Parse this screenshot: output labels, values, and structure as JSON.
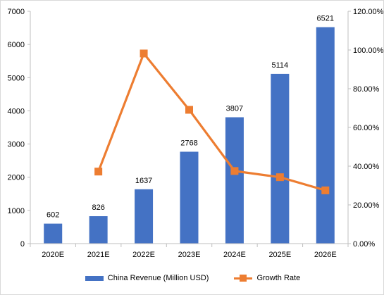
{
  "chart_data": {
    "type": "bar",
    "categories": [
      "2020E",
      "2021E",
      "2022E",
      "2023E",
      "2024E",
      "2025E",
      "2026E"
    ],
    "series": [
      {
        "name": "China Revenue (Million USD)",
        "type": "bar",
        "axis": "left",
        "color": "#4472C4",
        "values": [
          602,
          826,
          1637,
          2768,
          3807,
          5114,
          6521
        ],
        "labels": [
          "602",
          "826",
          "1637",
          "2768",
          "3807",
          "5114",
          "6521"
        ]
      },
      {
        "name": "Growth Rate",
        "type": "line",
        "axis": "right",
        "color": "#ED7D31",
        "values": [
          null,
          37.2,
          98.2,
          69.1,
          37.5,
          34.3,
          27.5
        ]
      }
    ],
    "y_left": {
      "ylim": [
        0,
        7000
      ],
      "ticks": [
        "0",
        "1000",
        "2000",
        "3000",
        "4000",
        "5000",
        "6000",
        "7000"
      ]
    },
    "y_right": {
      "ylim": [
        0,
        120
      ],
      "ticks": [
        "0.00%",
        "20.00%",
        "40.00%",
        "60.00%",
        "80.00%",
        "100.00%",
        "120.00%"
      ]
    },
    "grid": false,
    "legend_position": "bottom"
  }
}
